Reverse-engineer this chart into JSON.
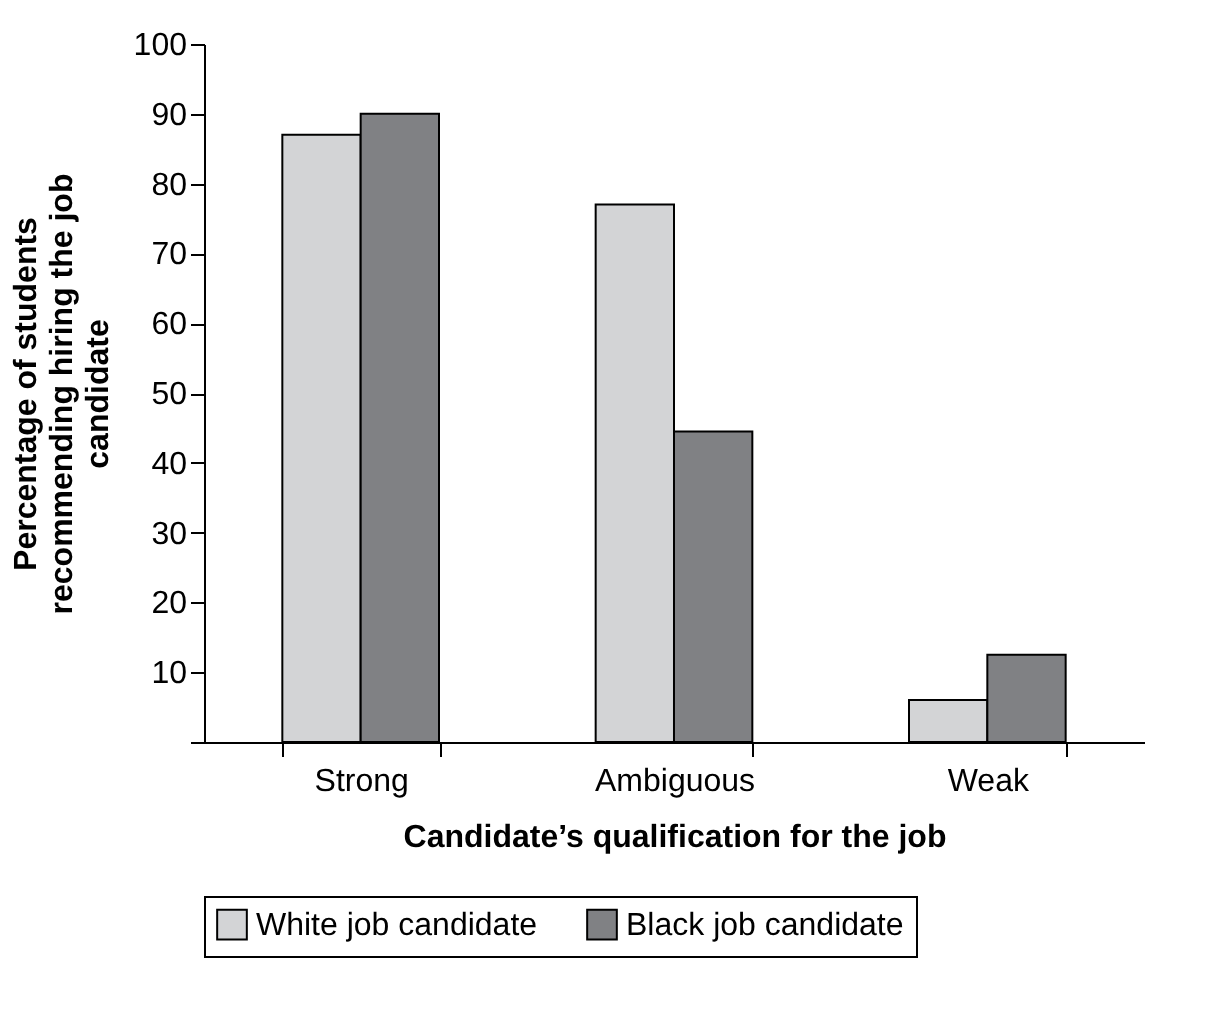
{
  "chart_data": {
    "type": "bar",
    "categories": [
      "Strong",
      "Ambiguous",
      "Weak"
    ],
    "xlabel": "Candidate’s qualification for the job",
    "ylabel": "Percentage of students recommending hiring the job candidate",
    "series": [
      {
        "name": "White job candidate",
        "color": "#d3d4d6",
        "values": [
          87,
          77,
          6
        ]
      },
      {
        "name": "Black job candidate",
        "color": "#808184",
        "values": [
          90,
          44.5,
          12.5
        ]
      }
    ],
    "ylim": [
      0,
      100
    ],
    "yticks": [
      {
        "value": 0,
        "label": null
      },
      10,
      20,
      30,
      40,
      50,
      60,
      70,
      80,
      90,
      100
    ],
    "grid": false,
    "legend": "bottom"
  }
}
